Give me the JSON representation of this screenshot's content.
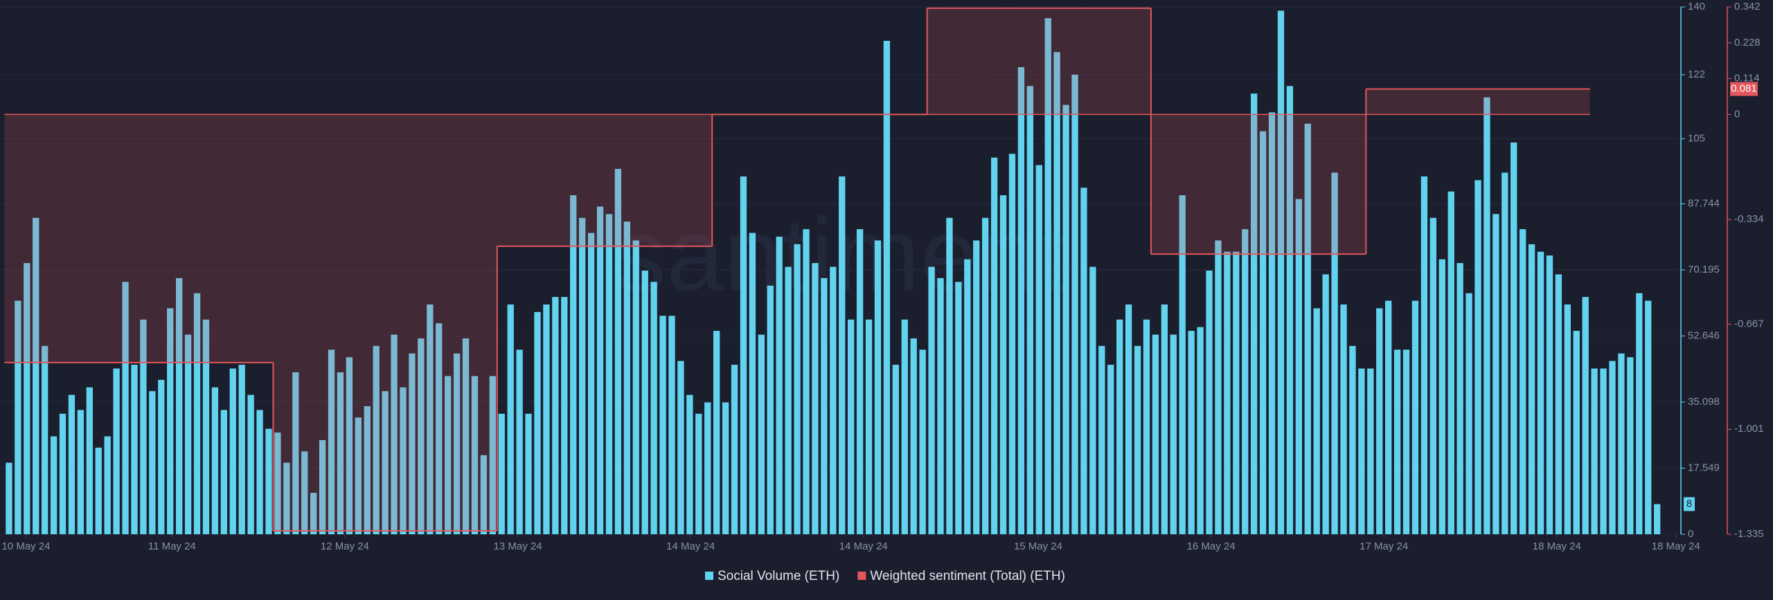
{
  "chart_data": {
    "type": "bar-step",
    "watermark": "santiment",
    "xlim": [
      -1,
      186.5
    ],
    "xticks": [
      {
        "value": 1.9,
        "label": "10 May 24"
      },
      {
        "value": 18.2,
        "label": "11 May 24"
      },
      {
        "value": 37.5,
        "label": "12 May 24"
      },
      {
        "value": 56.8,
        "label": "13 May 24"
      },
      {
        "value": 76.1,
        "label": "14 May 24"
      },
      {
        "value": 95.4,
        "label": "14 May 24"
      },
      {
        "value": 114.9,
        "label": "15 May 24"
      },
      {
        "value": 134.2,
        "label": "16 May 24"
      },
      {
        "value": 153.5,
        "label": "17 May 24"
      },
      {
        "value": 172.8,
        "label": "18 May 24"
      },
      {
        "value": 186.1,
        "label": "18 May 24"
      }
    ],
    "ylim": [
      0,
      140
    ],
    "yticks": [
      0,
      17.549,
      35.098,
      52.646,
      70.195,
      87.744,
      105,
      122,
      140
    ],
    "y2lim": [
      -1.335,
      0.342
    ],
    "y2ticks": [
      -1.335,
      -1.001,
      -0.667,
      -0.334,
      0,
      0.114,
      0.228,
      0.342
    ],
    "grid": true,
    "series": [
      {
        "name": "Social Volume (ETH)",
        "color": "#62d3ef",
        "type": "bar",
        "values": [
          19,
          62,
          72,
          84,
          50,
          26,
          32,
          37,
          33,
          39,
          23,
          26,
          44,
          67,
          45,
          57,
          38,
          41,
          60,
          68,
          53,
          64,
          57,
          39,
          33,
          44,
          45,
          37,
          33,
          28,
          27,
          19,
          43,
          22,
          11,
          25,
          49,
          43,
          47,
          31,
          34,
          50,
          38,
          53,
          39,
          48,
          52,
          61,
          56,
          42,
          48,
          52,
          42,
          21,
          42,
          32,
          61,
          49,
          32,
          59,
          61,
          63,
          63,
          90,
          84,
          80,
          87,
          85,
          97,
          83,
          78,
          70,
          67,
          58,
          58,
          46,
          37,
          32,
          35,
          54,
          35,
          45,
          95,
          80,
          53,
          66,
          79,
          71,
          77,
          81,
          72,
          68,
          71,
          95,
          57,
          81,
          57,
          78,
          131,
          45,
          57,
          52,
          49,
          71,
          68,
          84,
          67,
          73,
          78,
          84,
          100,
          90,
          101,
          124,
          119,
          98,
          137,
          128,
          114,
          122,
          92,
          71,
          50,
          45,
          57,
          61,
          50,
          57,
          53,
          61,
          53,
          90,
          54,
          55,
          70,
          78,
          75,
          75,
          81,
          117,
          107,
          112,
          139,
          119,
          89,
          109,
          60,
          69,
          96,
          61,
          50,
          44,
          44,
          60,
          62,
          49,
          49,
          62,
          95,
          84,
          73,
          91,
          72,
          64,
          94,
          116,
          85,
          96,
          104,
          81,
          77,
          75,
          74,
          69,
          61,
          54,
          63,
          44,
          44,
          46,
          48,
          47,
          64,
          62,
          8
        ]
      },
      {
        "name": "Weighted sentiment (Total) (ETH)",
        "color": "#e2575d",
        "type": "step",
        "axis": "y2",
        "values": [
          -0.789,
          -0.789,
          -0.789,
          -0.789,
          -0.789,
          -0.789,
          -0.789,
          -0.789,
          -0.789,
          -0.789,
          -0.789,
          -0.789,
          -0.789,
          -0.789,
          -0.789,
          -0.789,
          -0.789,
          -0.789,
          -0.789,
          -0.789,
          -0.789,
          -0.789,
          -0.789,
          -0.789,
          -0.789,
          -0.789,
          -0.789,
          -0.789,
          -0.789,
          -0.789,
          -1.324,
          -1.324,
          -1.324,
          -1.324,
          -1.324,
          -1.324,
          -1.324,
          -1.324,
          -1.324,
          -1.324,
          -1.324,
          -1.324,
          -1.324,
          -1.324,
          -1.324,
          -1.324,
          -1.324,
          -1.324,
          -1.324,
          -1.324,
          -1.324,
          -1.324,
          -1.324,
          -1.324,
          -1.324,
          -0.419,
          -0.419,
          -0.419,
          -0.419,
          -0.419,
          -0.419,
          -0.419,
          -0.419,
          -0.419,
          -0.419,
          -0.419,
          -0.419,
          -0.419,
          -0.419,
          -0.419,
          -0.419,
          -0.419,
          -0.419,
          -0.419,
          -0.419,
          -0.419,
          -0.419,
          -0.419,
          -0.419,
          0,
          0,
          0,
          0,
          0,
          0,
          0,
          0,
          0,
          0,
          0,
          0,
          0,
          0,
          0,
          0,
          0,
          0,
          0,
          0,
          0,
          0,
          0,
          0,
          0.338,
          0.338,
          0.338,
          0.338,
          0.338,
          0.338,
          0.338,
          0.338,
          0.338,
          0.338,
          0.338,
          0.338,
          0.338,
          0.338,
          0.338,
          0.338,
          0.338,
          0.338,
          0.338,
          0.338,
          0.338,
          0.338,
          0.338,
          0.338,
          0.338,
          -0.444,
          -0.444,
          -0.444,
          -0.444,
          -0.444,
          -0.444,
          -0.444,
          -0.444,
          -0.444,
          -0.444,
          -0.444,
          -0.444,
          -0.444,
          -0.444,
          -0.444,
          -0.444,
          -0.444,
          -0.444,
          -0.444,
          -0.444,
          -0.444,
          -0.444,
          -0.444,
          -0.444,
          0.081,
          0.081,
          0.081,
          0.081,
          0.081,
          0.081,
          0.081,
          0.081,
          0.081,
          0.081,
          0.081,
          0.081,
          0.081,
          0.081,
          0.081,
          0.081,
          0.081,
          0.081,
          0.081,
          0.081,
          0.081,
          0.081,
          0.081,
          0.081,
          0.081,
          null,
          null,
          null,
          null,
          null,
          null,
          null,
          null
        ]
      }
    ]
  }
}
